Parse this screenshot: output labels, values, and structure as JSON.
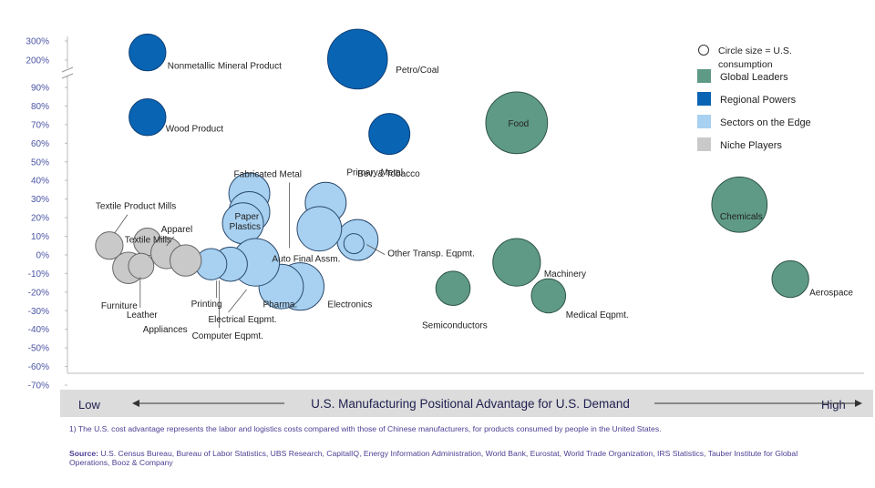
{
  "chart_data": {
    "type": "scatter",
    "subtype": "bubble",
    "y_axis": {
      "unit": "%",
      "lower_range": [
        -70,
        90
      ],
      "lower_ticks": [
        "-70%",
        "-60%",
        "-50%",
        "-40%",
        "-30%",
        "-20%",
        "-10%",
        "0%",
        "10%",
        "20%",
        "30%",
        "40%",
        "50%",
        "60%",
        "70%",
        "80%",
        "90%"
      ],
      "upper_ticks": [
        "200%",
        "300%"
      ],
      "axis_break": true
    },
    "x_axis": {
      "low_label": "Low",
      "high_label": "High",
      "title": "U.S. Manufacturing Positional Advantage for U.S. Demand",
      "ticks_shown": false
    },
    "legend": {
      "placement": "top-right",
      "size_note": "Circle size = U.S. consumption",
      "items": [
        {
          "name": "Global Leaders",
          "color": "#5f9a86"
        },
        {
          "name": "Regional Powers",
          "color": "#0a64b4"
        },
        {
          "name": "Sectors on the Edge",
          "color": "#a7d0f1"
        },
        {
          "name": "Niche Players",
          "color": "#c9c9c9"
        }
      ]
    },
    "grid": false,
    "points": [
      {
        "label": "Nonmetallic Mineral Product",
        "group": "Regional Powers",
        "x": 1.2,
        "y": 240,
        "size": 2
      },
      {
        "label": "Wood Product",
        "group": "Regional Powers",
        "x": 1.2,
        "y": 74,
        "size": 2
      },
      {
        "label": "Petro/Coal",
        "group": "Regional Powers",
        "x": 4.5,
        "y": 205,
        "size": 10
      },
      {
        "label": "Bev. & Tobacco",
        "group": "Regional Powers",
        "x": 5.0,
        "y": 65,
        "size": 3
      },
      {
        "label": "Food",
        "group": "Global Leaders",
        "x": 7.0,
        "y": 71,
        "size": 11
      },
      {
        "label": "Chemicals",
        "group": "Global Leaders",
        "x": 10.5,
        "y": 27,
        "size": 8
      },
      {
        "label": "Aerospace",
        "group": "Global Leaders",
        "x": 11.3,
        "y": -13,
        "size": 2
      },
      {
        "label": "Machinery",
        "group": "Global Leaders",
        "x": 7.0,
        "y": -4,
        "size": 5
      },
      {
        "label": "Medical Eqpmt.",
        "group": "Global Leaders",
        "x": 7.5,
        "y": -22,
        "size": 1.5
      },
      {
        "label": "Semiconductors",
        "group": "Global Leaders",
        "x": 6.0,
        "y": -18,
        "size": 1.5
      },
      {
        "label": "Fabricated Metal",
        "group": "Sectors on the Edge",
        "x": 2.8,
        "y": 33,
        "size": 3
      },
      {
        "label": "Paper",
        "group": "Sectors on the Edge",
        "x": 2.8,
        "y": 23,
        "size": 3
      },
      {
        "label": "Plastics",
        "group": "Sectors on the Edge",
        "x": 2.7,
        "y": 17,
        "size": 3
      },
      {
        "label": "Primary Metal",
        "group": "Sectors on the Edge",
        "x": 4.0,
        "y": 28,
        "size": 3
      },
      {
        "label": "Other Transp. Eqpmt.",
        "group": "Sectors on the Edge",
        "x": 4.5,
        "y": 8,
        "size": 3
      },
      {
        "label": "Auto Final Assm.",
        "group": "Sectors on the Edge",
        "x": 3.9,
        "y": 14,
        "size": 4
      },
      {
        "label": "Electronics",
        "group": "Sectors on the Edge",
        "x": 3.6,
        "y": -17,
        "size": 5
      },
      {
        "label": "Pharma.",
        "group": "Sectors on the Edge",
        "x": 3.3,
        "y": -17,
        "size": 4
      },
      {
        "label": "Electrical Eqpmt.",
        "group": "Sectors on the Edge",
        "x": 2.9,
        "y": -4,
        "size": 5
      },
      {
        "label": "Computer Eqpmt.",
        "group": "Sectors on the Edge",
        "x": 2.5,
        "y": -5,
        "size": 1.5
      },
      {
        "label": "Printing",
        "group": "Sectors on the Edge",
        "x": 2.2,
        "y": -5,
        "size": 1
      },
      {
        "label": "Textile Product Mills",
        "group": "Niche Players",
        "x": 0.6,
        "y": 5,
        "size": 0.5
      },
      {
        "label": "Textile Mills",
        "group": "Niche Players",
        "x": 1.2,
        "y": 7,
        "size": 0.5
      },
      {
        "label": "Apparel",
        "group": "Niche Players",
        "x": 1.5,
        "y": 1,
        "size": 1
      },
      {
        "label": "Furniture",
        "group": "Niche Players",
        "x": 0.9,
        "y": -7,
        "size": 1
      },
      {
        "label": "Leather",
        "group": "Niche Players",
        "x": 1.1,
        "y": -6,
        "size": 0.3
      },
      {
        "label": "Appliances",
        "group": "Niche Players",
        "x": 1.8,
        "y": -3,
        "size": 1
      }
    ]
  },
  "footnote": "1) The U.S. cost advantage represents the labor and logistics costs compared with those of Chinese manufacturers, for products consumed by people in the United States.",
  "source_label": "Source:",
  "source_text": "U.S. Census Bureau, Bureau of Labor Statistics, UBS Research, CapitalIQ, Energy Information Administration, World Bank, Eurostat, World Trade Organization, IRS Statistics, Tauber Institute for Global Operations, Booz & Company"
}
